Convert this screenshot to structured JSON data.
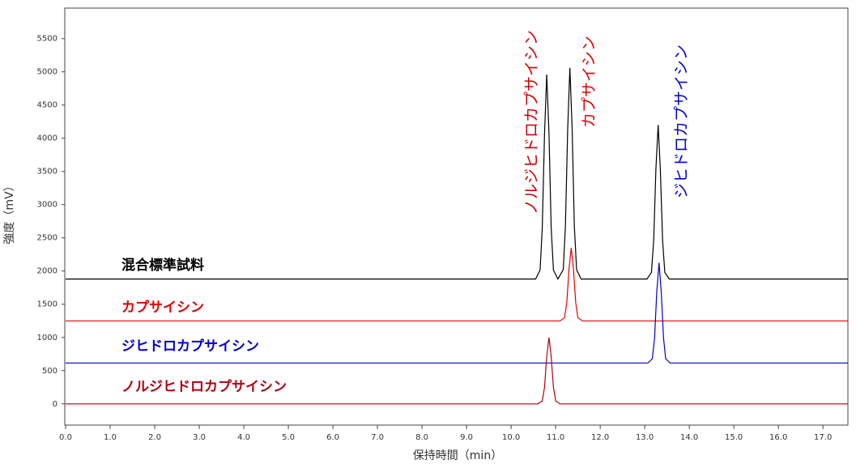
{
  "chart_data": {
    "type": "line",
    "xlabel": "保持時間（min）",
    "ylabel": "強度（mV）",
    "xlim": [
      0,
      17.56
    ],
    "ylim": [
      -320,
      5960
    ],
    "xticks": [
      {
        "value": 0,
        "label": "0.0"
      },
      {
        "value": 1,
        "label": "1.0"
      },
      {
        "value": 2,
        "label": "2.0"
      },
      {
        "value": 3,
        "label": "3.0"
      },
      {
        "value": 4,
        "label": "4.0"
      },
      {
        "value": 5,
        "label": "5.0"
      },
      {
        "value": 6,
        "label": "6.0"
      },
      {
        "value": 7,
        "label": "7.0"
      },
      {
        "value": 8,
        "label": "8.0"
      },
      {
        "value": 9,
        "label": "9.0"
      },
      {
        "value": 10,
        "label": "10.0"
      },
      {
        "value": 11,
        "label": "11.0"
      },
      {
        "value": 12,
        "label": "12.0"
      },
      {
        "value": 13,
        "label": "13.0"
      },
      {
        "value": 14,
        "label": "14.0"
      },
      {
        "value": 15,
        "label": "15.0"
      },
      {
        "value": 16,
        "label": "16.0"
      },
      {
        "value": 17,
        "label": "17.0"
      }
    ],
    "yticks": [
      0,
      500,
      1000,
      1500,
      2000,
      2500,
      3000,
      3500,
      4000,
      4500,
      5000,
      5500
    ],
    "series": [
      {
        "name": "混合標準試料",
        "color": "#000000",
        "x": [
          0,
          10.55,
          10.65,
          10.7,
          10.75,
          10.8,
          10.85,
          10.9,
          10.95,
          11.05,
          11.17,
          11.22,
          11.27,
          11.32,
          11.37,
          11.42,
          11.47,
          11.57,
          13.05,
          13.15,
          13.2,
          13.25,
          13.3,
          13.35,
          13.4,
          13.45,
          13.55,
          17.56
        ],
        "values": [
          1880,
          1880,
          2015,
          2650,
          4070,
          4960,
          4070,
          2650,
          2015,
          1880,
          2020,
          2680,
          4140,
          5060,
          4140,
          2680,
          2020,
          1880,
          1880,
          1980,
          2460,
          3530,
          4200,
          3530,
          2460,
          1980,
          1880,
          1880
        ]
      },
      {
        "name": "カプサイシン",
        "color": "#e00000",
        "x": [
          0,
          11.1,
          11.2,
          11.25,
          11.3,
          11.35,
          11.4,
          11.45,
          11.5,
          11.6,
          17.56
        ],
        "values": [
          1250,
          1250,
          1298,
          1525,
          2030,
          2350,
          2030,
          1525,
          1298,
          1250,
          1250
        ]
      },
      {
        "name": "ジヒドロカプサイシン",
        "color": "#0000d0",
        "x": [
          0,
          13.07,
          13.17,
          13.22,
          13.27,
          13.32,
          13.37,
          13.42,
          13.47,
          13.57,
          17.56
        ],
        "values": [
          615,
          615,
          680,
          993,
          1690,
          2125,
          1690,
          993,
          680,
          615,
          615
        ]
      },
      {
        "name": "ノルジヒドロカプサイシン",
        "color": "#b00010",
        "x": [
          0,
          10.6,
          10.7,
          10.75,
          10.8,
          10.85,
          10.9,
          10.95,
          11.0,
          11.1,
          17.56
        ],
        "values": [
          0,
          0,
          44,
          250,
          710,
          1000,
          710,
          250,
          44,
          0,
          0
        ]
      }
    ],
    "annotations": [
      {
        "text": "ノルジヒドロカプサイシン",
        "color": "#d00000"
      },
      {
        "text": "カプサイシン",
        "color": "#e00000"
      },
      {
        "text": "ジヒドロカプサイシン",
        "color": "#0000d0"
      }
    ]
  }
}
